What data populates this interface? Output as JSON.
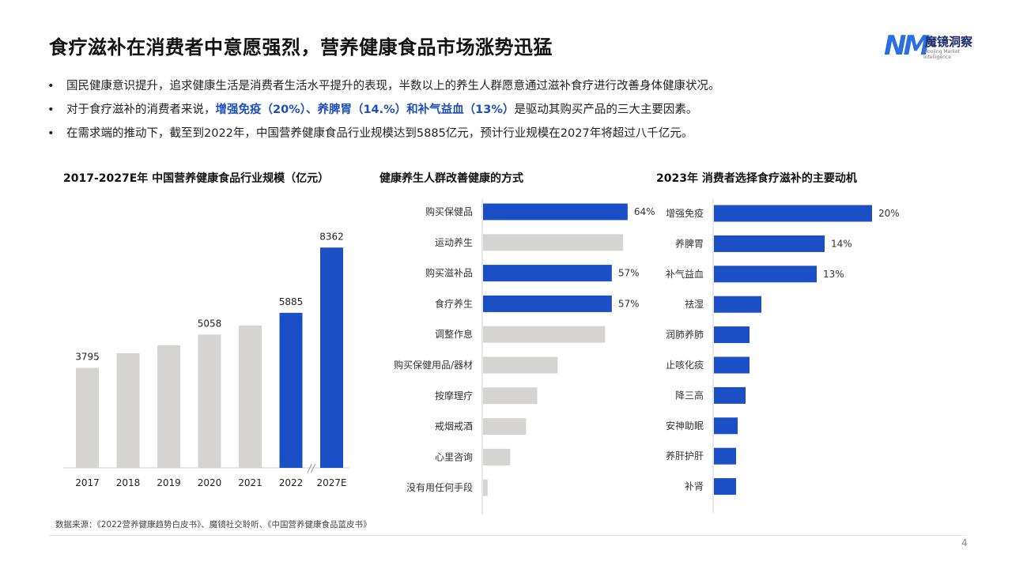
{
  "title": "食疗滋补在消费者中意愿强烈，营养健康食品市场涨势迅猛",
  "logo": {
    "mark": "NM",
    "text": "魔镜洞察",
    "sub": "Moojing Market Intelligence"
  },
  "bullets": [
    {
      "segments": [
        {
          "text": "国民健康意识提升，追求健康生活是消费者生活水平提升的表现，半数以上的养生人群愿意通过滋补食疗进行改善身体健康状况。",
          "highlight": false
        }
      ]
    },
    {
      "segments": [
        {
          "text": "对于食疗滋补的消费者来说，",
          "highlight": false
        },
        {
          "text": "增强免疫（20%）、养脾胃（14.%）和补气益血（13%）",
          "highlight": true
        },
        {
          "text": "是驱动其购买产品的三大主要因素。",
          "highlight": false
        }
      ]
    },
    {
      "segments": [
        {
          "text": "在需求端的推动下，截至到2022年，中国营养健康食品行业规模达到5885亿元，预计行业规模在2027年将超过八千亿元。",
          "highlight": false
        }
      ]
    }
  ],
  "bullet_glyph": "•",
  "colors": {
    "blue": "#1a4fc6",
    "gray": "#d6d3d3",
    "text": "#333333"
  },
  "chart_data": [
    {
      "type": "bar",
      "title": "2017-2027E年 中国营养健康食品行业规模（亿元）",
      "categories": [
        "2017",
        "2018",
        "2019",
        "2020",
        "2021",
        "2022",
        "2027E"
      ],
      "values": [
        3795,
        4350,
        4650,
        5058,
        5400,
        5885,
        8362
      ],
      "value_labels": [
        "3795",
        "",
        "",
        "5058",
        "",
        "5885",
        "8362"
      ],
      "highlight": [
        false,
        false,
        false,
        false,
        false,
        true,
        true
      ],
      "ylim": [
        0,
        9000
      ],
      "axis_break_before": "2027E",
      "axis_break_glyph": "//"
    },
    {
      "type": "bar",
      "orientation": "horizontal",
      "title": "健康养生人群改善健康的方式",
      "categories": [
        "购买保健品",
        "运动养生",
        "购买滋补品",
        "食疗养生",
        "调整作息",
        "购买保健用品/器材",
        "按摩理疗",
        "戒烟戒酒",
        "心里咨询",
        "没有用任何手段"
      ],
      "values": [
        64,
        62,
        57,
        57,
        54,
        33,
        24,
        19,
        12,
        2
      ],
      "value_labels": [
        "64%",
        "",
        "57%",
        "57%",
        "",
        "",
        "",
        "",
        "",
        ""
      ],
      "highlight": [
        true,
        false,
        true,
        true,
        false,
        false,
        false,
        false,
        false,
        false
      ],
      "xlim": [
        0,
        70
      ]
    },
    {
      "type": "bar",
      "orientation": "horizontal",
      "title": "2023年 消费者选择食疗滋补的主要动机",
      "categories": [
        "增强免疫",
        "养脾胃",
        "补气益血",
        "祛湿",
        "润肺养肺",
        "止咳化痰",
        "降三高",
        "安神助眠",
        "养肝护肝",
        "补肾"
      ],
      "values": [
        20,
        14,
        13,
        6,
        4.5,
        4.5,
        4,
        3,
        2.8,
        2.8
      ],
      "value_labels": [
        "20%",
        "14%",
        "13%",
        "",
        "",
        "",
        "",
        "",
        "",
        ""
      ],
      "highlight": [
        true,
        true,
        true,
        true,
        true,
        true,
        true,
        true,
        true,
        true
      ],
      "xlim": [
        0,
        24
      ]
    }
  ],
  "source": "数据来源：《2022营养健康趋势白皮书》、魔镜社交聆听、《中国营养健康食品蓝皮书》",
  "page_number": "4"
}
